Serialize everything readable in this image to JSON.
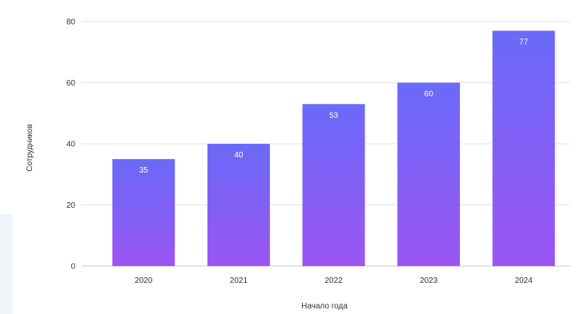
{
  "chart_data": {
    "type": "bar",
    "title": "",
    "xlabel": "Начало года",
    "ylabel": "Сотрудников",
    "categories": [
      "2020",
      "2021",
      "2022",
      "2023",
      "2024"
    ],
    "values": [
      35,
      40,
      53,
      60,
      77
    ],
    "ylim": [
      0,
      80
    ],
    "yticks": [
      0,
      20,
      40,
      60,
      80
    ],
    "grid": true,
    "legend": "none",
    "data_labels": true,
    "colors": {
      "bar_top": "#6a6af9",
      "bar_bottom": "#9b55f3",
      "label": "#ffffff",
      "grid": "#e2e2e2",
      "baseline": "#c9c9c9",
      "text": "#333333"
    }
  }
}
